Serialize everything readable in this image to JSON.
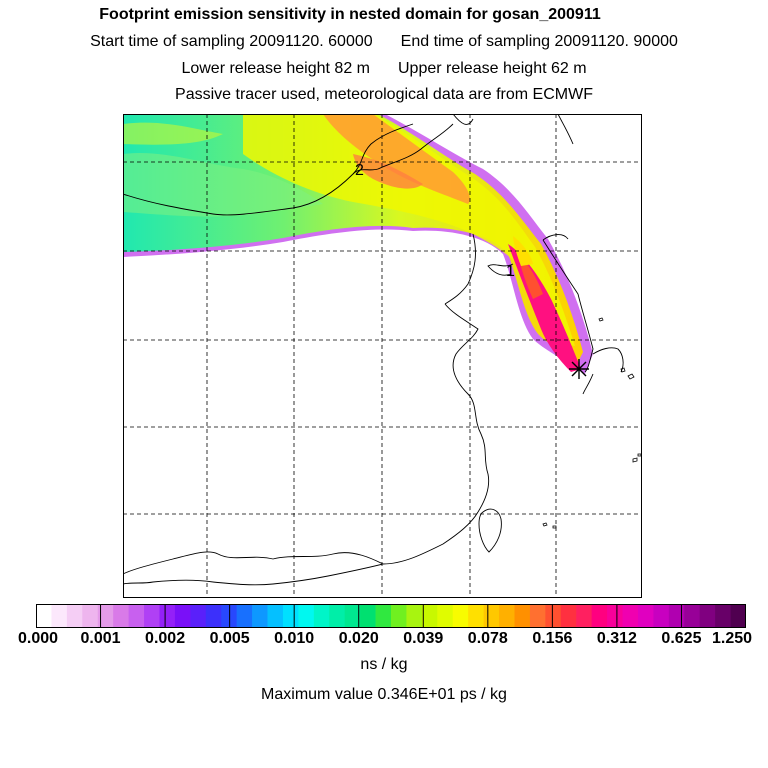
{
  "header": {
    "title": "Footprint emission sensitivity in nested domain for gosan_200911",
    "start": "Start time of sampling 20091120. 60000",
    "end": "End time of sampling 20091120. 90000",
    "lower": "Lower release height   82 m",
    "upper": "Upper release height   62 m",
    "note": "Passive tracer used, meteorological data are from ECMWF"
  },
  "map": {
    "markers": [
      {
        "label": "2"
      },
      {
        "label": "1"
      }
    ],
    "release_site_icon": "star-icon"
  },
  "colorbar": {
    "ticks": [
      "0.000",
      "0.001",
      "0.002",
      "0.005",
      "0.010",
      "0.020",
      "0.039",
      "0.078",
      "0.156",
      "0.312",
      "0.625",
      "1.250"
    ],
    "colors": [
      "#ffffff",
      "#fce8fc",
      "#f5cef5",
      "#eeb5ee",
      "#e49be9",
      "#d97ae8",
      "#c860ef",
      "#b040f5",
      "#9420f8",
      "#7a10f8",
      "#5a20fa",
      "#3c30fb",
      "#2848fd",
      "#1870fe",
      "#0e98ff",
      "#05c0ff",
      "#00e0ff",
      "#00f8f0",
      "#00f5c8",
      "#00eea8",
      "#00e890",
      "#00e070",
      "#30e840",
      "#70f020",
      "#a8f410",
      "#c8f800",
      "#e0fc00",
      "#f8fc00",
      "#ffe000",
      "#ffc800",
      "#ffb000",
      "#ff9000",
      "#ff7030",
      "#ff5030",
      "#ff3040",
      "#ff2060",
      "#ff0080",
      "#f8009a",
      "#f000b0",
      "#e000c0",
      "#c800c0",
      "#b000b0",
      "#980098",
      "#800080",
      "#680068",
      "#500050"
    ],
    "unit": "ns / kg"
  },
  "footer": {
    "max_value": "Maximum value  0.346E+01 ps / kg"
  }
}
